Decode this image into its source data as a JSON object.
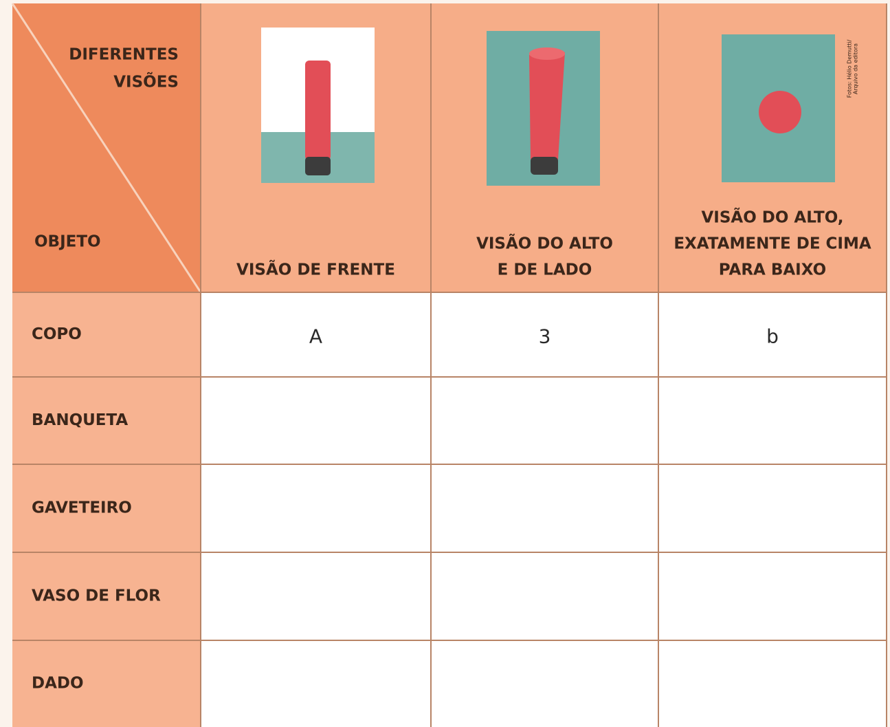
{
  "header": {
    "corner": {
      "top_lines": [
        "DIFERENTES",
        "VISÕES"
      ],
      "bottom_lines": [
        "OBJETO"
      ]
    },
    "columns": [
      {
        "lines": [
          "VISÃO DE FRENTE"
        ]
      },
      {
        "lines": [
          "VISÃO DO ALTO",
          "E DE LADO"
        ]
      },
      {
        "lines": [
          "VISÃO DO ALTO,",
          "EXATAMENTE DE CIMA",
          "PARA BAIXO"
        ],
        "credit_lines": [
          "Fotos: Hélio Demutti/",
          "Arquivo da editora"
        ]
      }
    ]
  },
  "table": {
    "rows": [
      {
        "object": "COPO",
        "cells": [
          "A",
          "3",
          "b"
        ]
      },
      {
        "object": "BANQUETA"
      },
      {
        "object": "GAVETEIRO"
      },
      {
        "object": "VASO DE FLOR"
      },
      {
        "object": "DADO"
      }
    ]
  }
}
